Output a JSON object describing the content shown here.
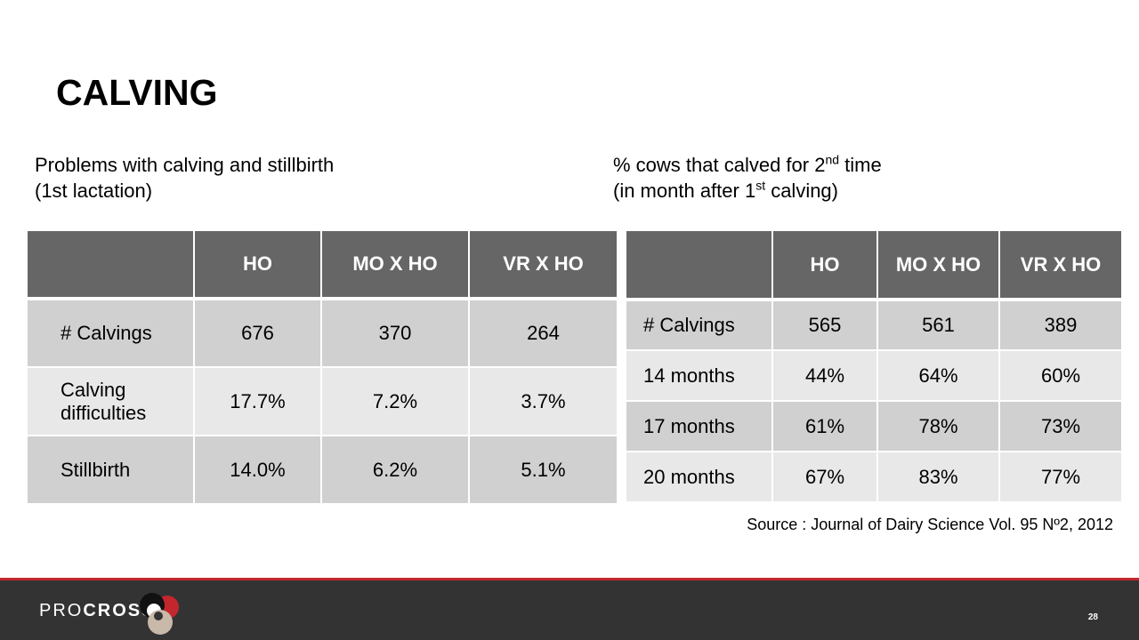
{
  "title": "CALVING",
  "left": {
    "caption_line1": "Problems with calving and stillbirth",
    "caption_line2": "(1st lactation)",
    "headers": [
      "",
      "HO",
      "MO X HO",
      "VR X HO"
    ],
    "rows": [
      {
        "label": "# Calvings",
        "values": [
          "676",
          "370",
          "264"
        ]
      },
      {
        "label": "Calving difficulties",
        "values": [
          "17.7%",
          "7.2%",
          "3.7%"
        ]
      },
      {
        "label": "Stillbirth",
        "values": [
          "14.0%",
          "6.2%",
          "5.1%"
        ]
      }
    ]
  },
  "right": {
    "caption_line1_a": "% cows that calved for 2",
    "caption_line1_sup": "nd",
    "caption_line1_b": " time",
    "caption_line2_a": "(in month after 1",
    "caption_line2_sup": "st",
    "caption_line2_b": " calving)",
    "headers": [
      "",
      "HO",
      "MO X HO",
      "VR X HO"
    ],
    "rows": [
      {
        "label": "# Calvings",
        "values": [
          "565",
          "561",
          "389"
        ]
      },
      {
        "label": "14 months",
        "values": [
          "44%",
          "64%",
          "60%"
        ]
      },
      {
        "label": "17 months",
        "values": [
          "61%",
          "78%",
          "73%"
        ]
      },
      {
        "label": "20 months",
        "values": [
          "67%",
          "83%",
          "77%"
        ]
      }
    ]
  },
  "source": "Source : Journal of Dairy Science Vol. 95 Nº2, 2012",
  "footer": {
    "logo_light": "PRO",
    "logo_bold": "CROSS",
    "page_number": "28",
    "accent_color": "#c4262e"
  }
}
